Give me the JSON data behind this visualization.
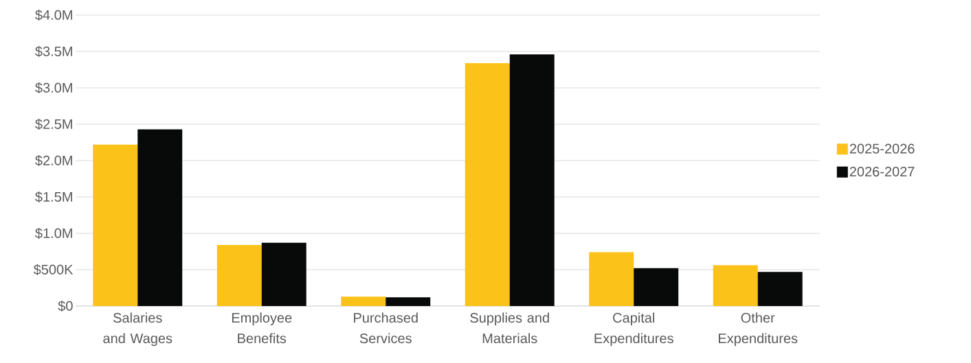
{
  "chart_data": {
    "type": "bar",
    "categories": [
      "Salaries and Wages",
      "Employee Benefits",
      "Purchased Services",
      "Supplies and Materials",
      "Capital Expenditures",
      "Other Expenditures"
    ],
    "series": [
      {
        "name": "2025-2026",
        "color": "#fbc31a",
        "values": [
          2220000,
          840000,
          130000,
          3340000,
          740000,
          560000
        ]
      },
      {
        "name": "2026-2027",
        "color": "#070a09",
        "values": [
          2430000,
          870000,
          120000,
          3460000,
          520000,
          470000
        ]
      }
    ],
    "ylim": [
      0,
      4000000
    ],
    "yticks": [
      {
        "value": 0,
        "label": "$0"
      },
      {
        "value": 500000,
        "label": "$500K"
      },
      {
        "value": 1000000,
        "label": "$1.0M"
      },
      {
        "value": 1500000,
        "label": "$1.5M"
      },
      {
        "value": 2000000,
        "label": "$2.0M"
      },
      {
        "value": 2500000,
        "label": "$2.5M"
      },
      {
        "value": 3000000,
        "label": "$3.0M"
      },
      {
        "value": 3500000,
        "label": "$3.5M"
      },
      {
        "value": 4000000,
        "label": "$4.0M"
      }
    ],
    "grid": "y",
    "legend": "right"
  }
}
